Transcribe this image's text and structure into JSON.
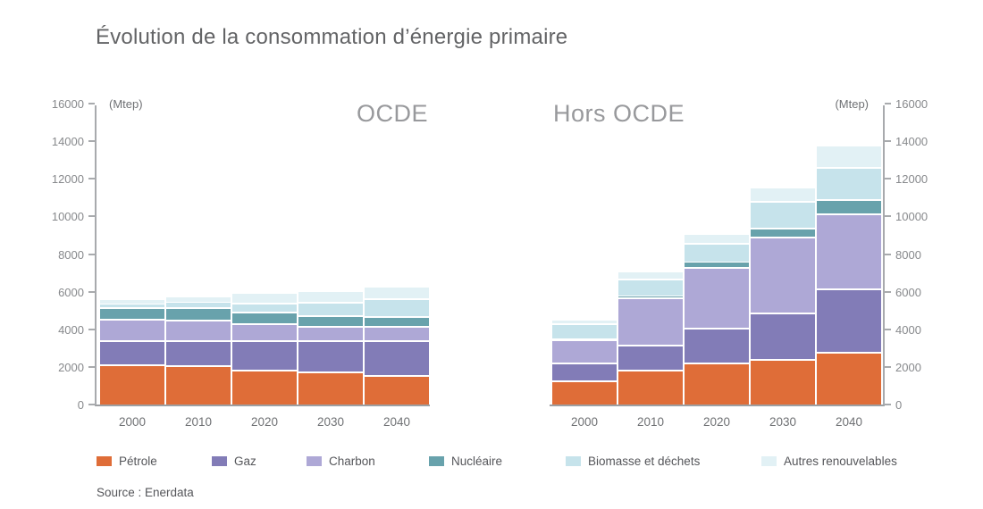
{
  "title": "Évolution de la consommation d’énergie primaire",
  "source": "Source : Enerdata",
  "colors": {
    "petrole": "#df6d38",
    "gaz": "#827cb7",
    "charbon": "#aea8d6",
    "nucleaire": "#68a2ac",
    "biomasse": "#c6e3eb",
    "autres_renouvelables": "#e2f1f5",
    "axis": "#a8aaad"
  },
  "chart_data": [
    {
      "type": "bar",
      "stacked": true,
      "title": "OCDE",
      "unit_label": "(Mtep)",
      "axis_side": "left",
      "grid": false,
      "ylim": [
        0,
        16000
      ],
      "yticks": [
        0,
        2000,
        4000,
        6000,
        8000,
        10000,
        12000,
        14000,
        16000
      ],
      "categories": [
        "2000",
        "2010",
        "2020",
        "2030",
        "2040"
      ],
      "series": [
        {
          "name": "Pétrole",
          "color": "#df6d38",
          "values": [
            2150,
            2100,
            1850,
            1750,
            1550
          ]
        },
        {
          "name": "Gaz",
          "color": "#827cb7",
          "values": [
            1250,
            1330,
            1550,
            1650,
            1850
          ]
        },
        {
          "name": "Charbon",
          "color": "#aea8d6",
          "values": [
            1150,
            1100,
            900,
            800,
            780
          ]
        },
        {
          "name": "Nucléaire",
          "color": "#68a2ac",
          "values": [
            620,
            650,
            620,
            550,
            520
          ]
        },
        {
          "name": "Biomasse et déchets",
          "color": "#c6e3eb",
          "values": [
            200,
            280,
            500,
            700,
            950
          ]
        },
        {
          "name": "Autres renouvelables",
          "color": "#e2f1f5",
          "values": [
            180,
            240,
            480,
            550,
            550
          ]
        }
      ]
    },
    {
      "type": "bar",
      "stacked": true,
      "title": "Hors OCDE",
      "unit_label": "(Mtep)",
      "axis_side": "right",
      "grid": false,
      "ylim": [
        0,
        16000
      ],
      "yticks": [
        0,
        2000,
        4000,
        6000,
        8000,
        10000,
        12000,
        14000,
        16000
      ],
      "categories": [
        "2000",
        "2010",
        "2020",
        "2030",
        "2040"
      ],
      "series": [
        {
          "name": "Pétrole",
          "color": "#df6d38",
          "values": [
            1300,
            1850,
            2250,
            2400,
            2800
          ]
        },
        {
          "name": "Gaz",
          "color": "#827cb7",
          "values": [
            950,
            1350,
            1850,
            2500,
            3350
          ]
        },
        {
          "name": "Charbon",
          "color": "#aea8d6",
          "values": [
            1200,
            2500,
            3200,
            4050,
            4000
          ]
        },
        {
          "name": "Nucléaire",
          "color": "#68a2ac",
          "values": [
            80,
            100,
            280,
            450,
            750
          ]
        },
        {
          "name": "Biomasse et déchets",
          "color": "#c6e3eb",
          "values": [
            800,
            900,
            1000,
            1450,
            1750
          ]
        },
        {
          "name": "Autres renouvelables",
          "color": "#e2f1f5",
          "values": [
            120,
            350,
            450,
            650,
            1050
          ]
        }
      ]
    }
  ],
  "legend": {
    "items": [
      {
        "label": "Pétrole",
        "color": "#df6d38"
      },
      {
        "label": "Gaz",
        "color": "#827cb7"
      },
      {
        "label": "Charbon",
        "color": "#aea8d6"
      },
      {
        "label": "Nucléaire",
        "color": "#68a2ac"
      },
      {
        "label": "Biomasse et déchets",
        "color": "#c6e3eb"
      },
      {
        "label": "Autres renouvelables",
        "color": "#e2f1f5"
      }
    ]
  }
}
